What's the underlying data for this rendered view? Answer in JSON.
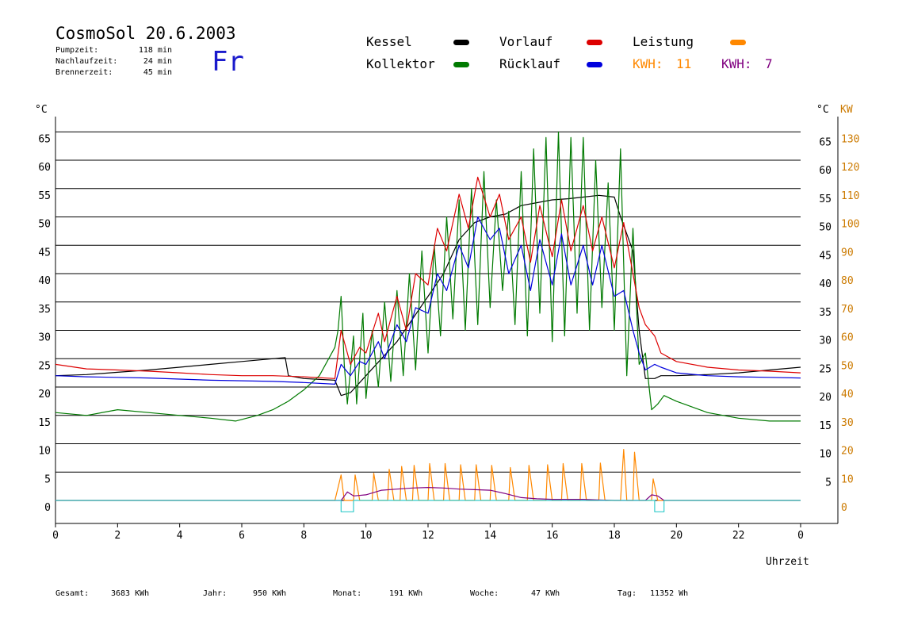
{
  "header": {
    "title": "CosmoSol 20.6.2003",
    "day": "Fr",
    "info": [
      {
        "label": "Pumpzeit:",
        "value": "118 min"
      },
      {
        "label": "Nachlaufzeit:",
        "value": "24 min"
      },
      {
        "label": "Brennerzeit:",
        "value": "45 min"
      }
    ]
  },
  "legend": {
    "kessel": {
      "label": "Kessel",
      "color": "#000000"
    },
    "kollektor": {
      "label": "Kollektor",
      "color": "#007a00"
    },
    "vorlauf": {
      "label": "Vorlauf",
      "color": "#dd0000"
    },
    "ruecklauf": {
      "label": "Rücklauf",
      "color": "#0000dd"
    },
    "leistung": {
      "label": "Leistung",
      "color": "#ff8800"
    },
    "kwh_orange": {
      "label": "KWH:",
      "value": "11",
      "color": "#ff8800"
    },
    "kwh_purple": {
      "label": "KWH:",
      "value": "7",
      "color": "#800080"
    }
  },
  "footer": [
    {
      "label": "Gesamt:",
      "value": "3683 KWh"
    },
    {
      "label": "Jahr:",
      "value": "950 KWh"
    },
    {
      "label": "Monat:",
      "value": "191 KWh"
    },
    {
      "label": "Woche:",
      "value": "47 KWh"
    },
    {
      "label": "Tag:",
      "value": "11352 Wh"
    }
  ],
  "chart_data": {
    "type": "line",
    "xlabel": "Uhrzeit",
    "ylabel_left": "°C",
    "ylabel_right": "°C",
    "ylabel_right2": "KW",
    "x_ticks": [
      "0",
      "2",
      "4",
      "6",
      "8",
      "10",
      "12",
      "14",
      "16",
      "18",
      "20",
      "22",
      "0"
    ],
    "y_ticks_left": [
      "0",
      "5",
      "10",
      "15",
      "20",
      "25",
      "30",
      "35",
      "40",
      "45",
      "50",
      "55",
      "60",
      "65"
    ],
    "y_ticks_right": [
      "5",
      "10",
      "15",
      "20",
      "25",
      "30",
      "35",
      "40",
      "45",
      "50",
      "55",
      "60",
      "65"
    ],
    "y_ticks_right_kw": [
      "0",
      "10",
      "20",
      "30",
      "40",
      "50",
      "60",
      "70",
      "80",
      "90",
      "100",
      "110",
      "120",
      "130"
    ],
    "xlim": [
      0,
      24
    ],
    "ylim": [
      -4,
      70
    ],
    "grid": true,
    "series": [
      {
        "name": "Kessel",
        "color": "#000000",
        "x": [
          0,
          1,
          2,
          3,
          4,
          5,
          6,
          7,
          7.4,
          7.5,
          8,
          9,
          9.2,
          9.5,
          10,
          11,
          12,
          12.5,
          13,
          13.5,
          14,
          14.5,
          15,
          15.5,
          16,
          16.5,
          17,
          17.5,
          18,
          18.2,
          18.4,
          18.6,
          18.8,
          19,
          19.3,
          19.5,
          20,
          21,
          22,
          23,
          24
        ],
        "y": [
          22,
          22.2,
          22.6,
          23,
          23.5,
          24,
          24.5,
          25,
          25.2,
          22,
          21.5,
          21.2,
          18.5,
          19,
          22,
          28,
          36,
          40,
          46,
          49,
          50,
          50.5,
          52,
          52.5,
          53,
          53.2,
          53.5,
          53.8,
          53.5,
          50,
          47,
          44,
          30,
          21.5,
          21.5,
          22,
          22,
          22.2,
          22.5,
          23,
          23.5
        ]
      },
      {
        "name": "Kollektor",
        "color": "#007a00",
        "x": [
          0,
          1,
          2,
          3,
          4,
          5,
          5.8,
          6.5,
          7,
          7.5,
          8,
          8.5,
          9,
          9.1,
          9.2,
          9.3,
          9.4,
          9.6,
          9.7,
          9.9,
          10,
          10.2,
          10.4,
          10.6,
          10.8,
          11,
          11.2,
          11.4,
          11.6,
          11.8,
          12,
          12.2,
          12.4,
          12.6,
          12.8,
          13,
          13.2,
          13.4,
          13.6,
          13.8,
          14,
          14.2,
          14.4,
          14.6,
          14.8,
          15,
          15.2,
          15.4,
          15.6,
          15.8,
          16,
          16.2,
          16.4,
          16.6,
          16.8,
          17,
          17.2,
          17.4,
          17.6,
          17.8,
          18,
          18.2,
          18.4,
          18.6,
          18.8,
          19,
          19.2,
          19.4,
          19.6,
          20,
          21,
          22,
          23,
          24
        ],
        "y": [
          15.5,
          15,
          16,
          15.5,
          15,
          14.5,
          14,
          15,
          16,
          17.5,
          19.5,
          22,
          27,
          30,
          36,
          24,
          17,
          29,
          17,
          33,
          18,
          30,
          20,
          35,
          21,
          37,
          22,
          40,
          23,
          44,
          26,
          45,
          29,
          50,
          32,
          53,
          30,
          55,
          31,
          58,
          34,
          53,
          37,
          51,
          31,
          58,
          29,
          62,
          33,
          64,
          28,
          65,
          29,
          64,
          33,
          64,
          30,
          60,
          34,
          56,
          30,
          62,
          22,
          48,
          24,
          26,
          16,
          17,
          18.5,
          17.5,
          15.5,
          14.5,
          14,
          14
        ]
      },
      {
        "name": "Vorlauf",
        "color": "#dd0000",
        "x": [
          0,
          1,
          2,
          3,
          4,
          5,
          6,
          7,
          8,
          9,
          9.2,
          9.5,
          9.8,
          10,
          10.4,
          10.6,
          11,
          11.3,
          11.6,
          12,
          12.3,
          12.6,
          13,
          13.3,
          13.6,
          14,
          14.3,
          14.6,
          15,
          15.3,
          15.6,
          16,
          16.3,
          16.6,
          17,
          17.3,
          17.6,
          18,
          18.3,
          18.6,
          18.8,
          19,
          19.3,
          19.5,
          20,
          21,
          22,
          23,
          24
        ],
        "y": [
          24,
          23.2,
          23,
          22.8,
          22.5,
          22.2,
          22,
          22,
          21.8,
          21.5,
          30,
          24,
          27,
          26,
          33,
          28,
          36,
          30,
          40,
          38,
          48,
          44,
          54,
          48,
          57,
          50,
          54,
          46,
          50,
          42,
          52,
          43,
          53,
          44,
          52,
          44,
          50,
          41,
          49,
          40,
          34,
          31,
          29,
          26,
          24.5,
          23.5,
          23,
          22.8,
          22.5
        ]
      },
      {
        "name": "Rücklauf",
        "color": "#0000dd",
        "x": [
          0,
          1,
          2,
          3,
          4,
          5,
          6,
          7,
          8,
          9,
          9.2,
          9.5,
          9.8,
          10,
          10.4,
          10.6,
          11,
          11.3,
          11.6,
          12,
          12.3,
          12.6,
          13,
          13.3,
          13.6,
          14,
          14.3,
          14.6,
          15,
          15.3,
          15.6,
          16,
          16.3,
          16.6,
          17,
          17.3,
          17.6,
          18,
          18.3,
          18.6,
          18.8,
          19,
          19.3,
          19.5,
          20,
          21,
          22,
          23,
          24
        ],
        "y": [
          22,
          21.8,
          21.7,
          21.6,
          21.4,
          21.2,
          21.1,
          21,
          20.8,
          20.5,
          24,
          22,
          24.5,
          24,
          28,
          25,
          31,
          28,
          34,
          33,
          40,
          37,
          45,
          41,
          50,
          46,
          48,
          40,
          45,
          37,
          46,
          38,
          47,
          38,
          45,
          38,
          45,
          36,
          37,
          30,
          26,
          23,
          24,
          23.5,
          22.5,
          22,
          21.8,
          21.7,
          21.6
        ]
      },
      {
        "name": "Leistung",
        "color": "#ff8800",
        "x": [
          0,
          9,
          9.2,
          9.3,
          9.6,
          9.65,
          9.8,
          10.2,
          10.25,
          10.4,
          10.7,
          10.75,
          10.9,
          11.1,
          11.15,
          11.3,
          11.5,
          11.55,
          11.7,
          12,
          12.05,
          12.2,
          12.5,
          12.55,
          12.7,
          13,
          13.05,
          13.2,
          13.5,
          13.55,
          13.7,
          14,
          14.05,
          14.2,
          14.6,
          14.65,
          14.8,
          15.2,
          15.25,
          15.4,
          15.8,
          15.85,
          16,
          16.3,
          16.35,
          16.5,
          16.9,
          16.95,
          17.1,
          17.5,
          17.55,
          17.7,
          18.2,
          18.3,
          18.4,
          18.6,
          18.65,
          18.8,
          19.2,
          19.25,
          19.4,
          24
        ],
        "y": [
          0,
          0,
          4.5,
          0,
          0,
          4.5,
          0,
          0,
          4.8,
          0,
          0,
          5.5,
          0,
          0,
          6,
          0,
          0,
          6.2,
          0,
          0,
          6.5,
          0,
          0,
          6.5,
          0,
          0,
          6.3,
          0,
          0,
          6.3,
          0,
          0,
          6.2,
          0,
          0,
          5.8,
          0,
          0,
          6.2,
          0,
          0,
          6.3,
          0,
          0,
          6.5,
          0,
          0,
          6.5,
          0,
          0,
          6.6,
          0,
          0,
          9,
          0,
          0,
          8.5,
          0,
          0,
          3.8,
          0,
          0
        ]
      },
      {
        "name": "Leistung2",
        "color": "#800080",
        "x": [
          0,
          9.2,
          9.4,
          9.6,
          10,
          10.5,
          11,
          11.5,
          12,
          12.5,
          13,
          13.5,
          14,
          14.5,
          15,
          15.5,
          16,
          16.5,
          17,
          17.5,
          18,
          18.5,
          19,
          19.2,
          19.4,
          19.6,
          24
        ],
        "y": [
          0,
          0,
          1.5,
          0.8,
          1,
          1.8,
          2,
          2.2,
          2.3,
          2.2,
          2,
          1.9,
          1.8,
          1.2,
          0.5,
          0.3,
          0.2,
          0.2,
          0.2,
          0.1,
          0,
          0,
          0,
          1,
          0.8,
          0,
          0
        ]
      },
      {
        "name": "Pumpe",
        "color": "#33cccc",
        "x": [
          0,
          9.2,
          9.2,
          9.6,
          9.6,
          19.3,
          19.3,
          19.6,
          19.6,
          24
        ],
        "y": [
          0,
          0,
          -2,
          -2,
          0,
          0,
          -2,
          -2,
          0,
          0
        ]
      }
    ]
  }
}
